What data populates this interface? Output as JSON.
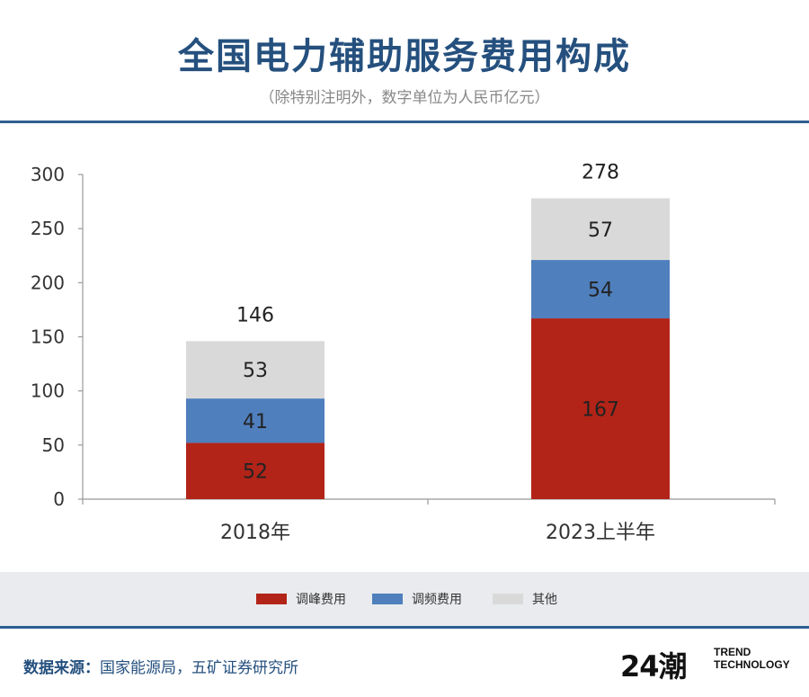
{
  "header": {
    "title": "全国电力辅助服务费用构成",
    "subtitle": "（除特别注明外，数字单位为人民币亿元）"
  },
  "chart_data": {
    "type": "bar",
    "stacked": true,
    "categories": [
      "2018年",
      "2023上半年"
    ],
    "series": [
      {
        "name": "调峰费用",
        "color": "#b22418",
        "values": [
          52,
          167
        ]
      },
      {
        "name": "调频费用",
        "color": "#4f7fbd",
        "values": [
          41,
          54
        ]
      },
      {
        "name": "其他",
        "color": "#d9d9d9",
        "values": [
          53,
          57
        ]
      }
    ],
    "totals": [
      146,
      278
    ],
    "ylim": [
      0,
      300
    ],
    "yticks": [
      0,
      50,
      100,
      150,
      200,
      250,
      300
    ],
    "grid": false,
    "legend_position": "bottom"
  },
  "legend": {
    "items": [
      "调峰费用",
      "调频费用",
      "其他"
    ]
  },
  "footer": {
    "source_label": "数据来源：",
    "source_text": "国家能源局，五矿证券研究所",
    "logo_mark": "24潮",
    "logo_line1": "TREND",
    "logo_line2": "TECHNOLOGY"
  }
}
